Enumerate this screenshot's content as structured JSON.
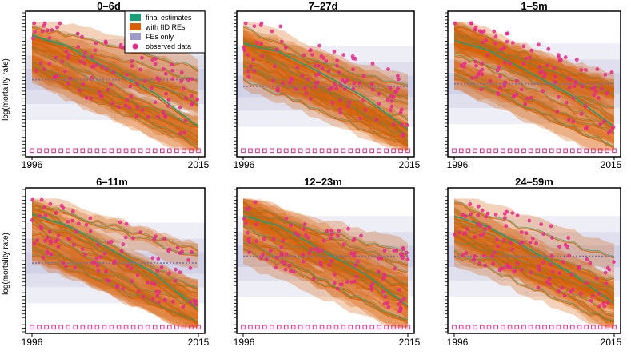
{
  "figure": {
    "ylabel": "log(mortality rate)"
  },
  "legend": {
    "placement": "top-right of first panel",
    "entries": [
      {
        "label": "final estimates",
        "color": "#1b9e77",
        "style": "line+band"
      },
      {
        "label": "with IID REs",
        "color": "#d95f02",
        "style": "line+band"
      },
      {
        "label": "FEs only",
        "color": "#7570b3",
        "style": "dotted line+band"
      },
      {
        "label": "observed data",
        "color": "#e7298a",
        "style": "points"
      }
    ]
  },
  "colors": {
    "final": "#1b9e77",
    "iid": "#d95f02",
    "fe": "#7570b3",
    "observed": "#e7298a"
  },
  "chart_data": [
    {
      "type": "line",
      "title": "0–6d",
      "xlabel": "",
      "ylabel": "log(mortality rate)",
      "x_ticks": [
        "1996",
        "2015"
      ],
      "xlim": [
        1996,
        2015
      ],
      "ylim": [
        0,
        1
      ],
      "series": [
        {
          "name": "final estimates",
          "x": [
            1996,
            2000,
            2005,
            2010,
            2015
          ],
          "values": [
            0.88,
            0.8,
            0.62,
            0.45,
            0.2
          ]
        },
        {
          "name": "with IID REs",
          "x": [
            1996,
            2000,
            2005,
            2010,
            2015
          ],
          "values": [
            0.85,
            0.78,
            0.6,
            0.43,
            0.19
          ]
        },
        {
          "name": "FEs only",
          "x": [
            1996,
            2000,
            2005,
            2010,
            2015
          ],
          "values": [
            0.55,
            0.55,
            0.55,
            0.55,
            0.55
          ]
        }
      ]
    },
    {
      "type": "line",
      "title": "7–27d",
      "xlabel": "",
      "ylabel": "",
      "x_ticks": [
        "1996",
        "2015"
      ],
      "xlim": [
        1996,
        2015
      ],
      "ylim": [
        0,
        1
      ],
      "series": [
        {
          "name": "final estimates",
          "x": [
            1996,
            2000,
            2005,
            2010,
            2015
          ],
          "values": [
            0.82,
            0.76,
            0.6,
            0.42,
            0.18
          ]
        },
        {
          "name": "with IID REs",
          "x": [
            1996,
            2000,
            2005,
            2010,
            2015
          ],
          "values": [
            0.8,
            0.74,
            0.58,
            0.4,
            0.17
          ]
        },
        {
          "name": "FEs only",
          "x": [
            1996,
            2000,
            2005,
            2010,
            2015
          ],
          "values": [
            0.5,
            0.5,
            0.5,
            0.5,
            0.5
          ]
        }
      ]
    },
    {
      "type": "line",
      "title": "1–5m",
      "xlabel": "",
      "ylabel": "",
      "x_ticks": [
        "1996",
        "2015"
      ],
      "xlim": [
        1996,
        2015
      ],
      "ylim": [
        0,
        1
      ],
      "series": [
        {
          "name": "final estimates",
          "x": [
            1996,
            2000,
            2005,
            2010,
            2015
          ],
          "values": [
            0.84,
            0.77,
            0.6,
            0.43,
            0.2
          ]
        },
        {
          "name": "with IID REs",
          "x": [
            1996,
            2000,
            2005,
            2010,
            2015
          ],
          "values": [
            0.82,
            0.75,
            0.58,
            0.41,
            0.18
          ]
        },
        {
          "name": "FEs only",
          "x": [
            1996,
            2000,
            2005,
            2010,
            2015
          ],
          "values": [
            0.52,
            0.52,
            0.52,
            0.52,
            0.52
          ]
        }
      ]
    },
    {
      "type": "line",
      "title": "6–11m",
      "xlabel": "",
      "ylabel": "log(mortality rate)",
      "x_ticks": [
        "1996",
        "2015"
      ],
      "xlim": [
        1996,
        2015
      ],
      "ylim": [
        0,
        1
      ],
      "series": [
        {
          "name": "final estimates",
          "x": [
            1996,
            2000,
            2005,
            2010,
            2015
          ],
          "values": [
            0.86,
            0.78,
            0.6,
            0.42,
            0.15
          ]
        },
        {
          "name": "with IID REs",
          "x": [
            1996,
            2000,
            2005,
            2010,
            2015
          ],
          "values": [
            0.84,
            0.76,
            0.58,
            0.4,
            0.14
          ]
        },
        {
          "name": "FEs only",
          "x": [
            1996,
            2000,
            2005,
            2010,
            2015
          ],
          "values": [
            0.5,
            0.5,
            0.5,
            0.5,
            0.5
          ]
        }
      ]
    },
    {
      "type": "line",
      "title": "12–23m",
      "xlabel": "",
      "ylabel": "",
      "x_ticks": [
        "1996",
        "2015"
      ],
      "xlim": [
        1996,
        2015
      ],
      "ylim": [
        0,
        1
      ],
      "series": [
        {
          "name": "final estimates",
          "x": [
            1996,
            2000,
            2005,
            2010,
            2015
          ],
          "values": [
            0.85,
            0.78,
            0.6,
            0.42,
            0.18
          ]
        },
        {
          "name": "with IID REs",
          "x": [
            1996,
            2000,
            2005,
            2010,
            2015
          ],
          "values": [
            0.83,
            0.76,
            0.58,
            0.4,
            0.17
          ]
        },
        {
          "name": "FEs only",
          "x": [
            1996,
            2000,
            2005,
            2010,
            2015
          ],
          "values": [
            0.55,
            0.55,
            0.55,
            0.55,
            0.55
          ]
        }
      ]
    },
    {
      "type": "line",
      "title": "24–59m",
      "xlabel": "",
      "ylabel": "",
      "x_ticks": [
        "1996",
        "2015"
      ],
      "xlim": [
        1996,
        2015
      ],
      "ylim": [
        0,
        1
      ],
      "series": [
        {
          "name": "final estimates",
          "x": [
            1996,
            2000,
            2005,
            2010,
            2015
          ],
          "values": [
            0.85,
            0.77,
            0.6,
            0.42,
            0.2
          ]
        },
        {
          "name": "with IID REs",
          "x": [
            1996,
            2000,
            2005,
            2010,
            2015
          ],
          "values": [
            0.83,
            0.75,
            0.58,
            0.4,
            0.19
          ]
        },
        {
          "name": "FEs only",
          "x": [
            1996,
            2000,
            2005,
            2010,
            2015
          ],
          "values": [
            0.55,
            0.55,
            0.55,
            0.55,
            0.55
          ]
        }
      ]
    }
  ]
}
